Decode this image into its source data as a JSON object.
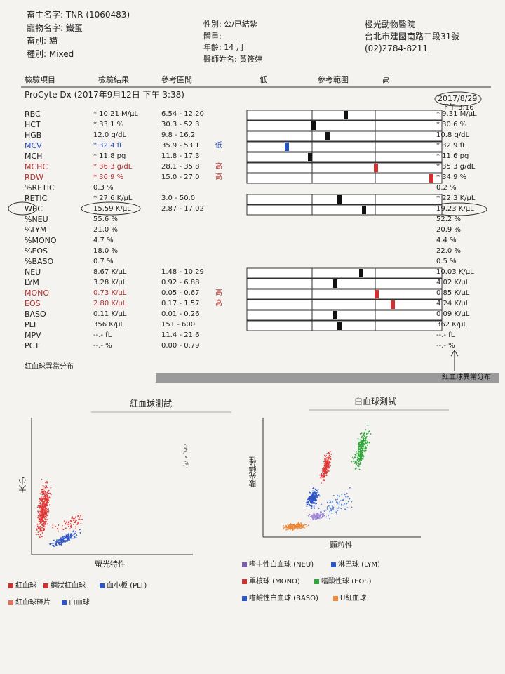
{
  "header": {
    "owner": "畜主名字: TNR (1060483)",
    "pet_name": "寵物名字: 鐵蛋",
    "species": "畜別: 貓",
    "breed": "種別: Mixed",
    "sex": "性別: 公/已結紮",
    "weight": "體重:",
    "age": "年齡: 14 月",
    "doctor": "醫師姓名: 黃筱婷",
    "clinic": "極光動物醫院",
    "address": "台北市建國南路二段31號",
    "phone": "(02)2784-8211"
  },
  "table": {
    "columns": [
      "檢驗項目",
      "檢驗結果",
      "參考區間",
      "低",
      "參考範圍",
      "高"
    ],
    "instrument": "ProCyte Dx (2017年9月12日 下午 3:38)",
    "previous_date": "2017/8/29",
    "previous_time": "下午 3:16",
    "rows": [
      {
        "name": "RBC",
        "result": "* 10.21 M/μL",
        "ref": "6.54 - 12.20",
        "prev": "* 9.31 M/μL"
      },
      {
        "name": "HCT",
        "result": "* 33.1 %",
        "ref": "30.3 - 52.3",
        "prev": "* 30.6 %"
      },
      {
        "name": "HGB",
        "result": "12.0 g/dL",
        "ref": "9.8 - 16.2",
        "prev": "10.8 g/dL"
      },
      {
        "name": "MCV",
        "result": "* 32.4 fL",
        "ref": "35.9 - 53.1",
        "flag": "低",
        "prev": "* 32.9 fL",
        "color": "#2a52be"
      },
      {
        "name": "MCH",
        "result": "* 11.8 pg",
        "ref": "11.8 - 17.3",
        "prev": "* 11.6 pg"
      },
      {
        "name": "MCHC",
        "result": "* 36.3 g/dL",
        "ref": "28.1 - 35.8",
        "flag": "高",
        "prev": "* 35.3 g/dL",
        "color": "#b03030"
      },
      {
        "name": "RDW",
        "result": "* 36.9 %",
        "ref": "15.0 - 27.0",
        "flag": "高",
        "prev": "* 34.9 %",
        "color": "#b03030"
      },
      {
        "name": "%RETIC",
        "result": "0.3 %",
        "prev": "0.2 %"
      },
      {
        "name": "RETIC",
        "result": "* 27.6 K/μL",
        "ref": "3.0 - 50.0",
        "prev": "* 22.3 K/μL"
      },
      {
        "name": "WBC",
        "result": "15.59 K/μL",
        "ref": "2.87 - 17.02",
        "prev": "19.23 K/μL"
      },
      {
        "name": "%NEU",
        "result": "55.6 %",
        "prev": "52.2 %"
      },
      {
        "name": "%LYM",
        "result": "21.0 %",
        "prev": "20.9 %"
      },
      {
        "name": "%MONO",
        "result": "4.7 %",
        "prev": "4.4 %"
      },
      {
        "name": "%EOS",
        "result": "18.0 %",
        "prev": "22.0 %"
      },
      {
        "name": "%BASO",
        "result": "0.7 %",
        "prev": "0.5 %"
      },
      {
        "name": "NEU",
        "result": "8.67 K/μL",
        "ref": "1.48 - 10.29",
        "prev": "10.03 K/μL"
      },
      {
        "name": "LYM",
        "result": "3.28 K/μL",
        "ref": "0.92 - 6.88",
        "prev": "4.02 K/μL"
      },
      {
        "name": "MONO",
        "result": "0.73 K/μL",
        "ref": "0.05 - 0.67",
        "flag": "高",
        "prev": "0.85 K/μL",
        "color": "#b03030"
      },
      {
        "name": "EOS",
        "result": "2.80 K/μL",
        "ref": "0.17 - 1.57",
        "flag": "高",
        "prev": "4.24 K/μL",
        "color": "#b03030"
      },
      {
        "name": "BASO",
        "result": "0.11 K/μL",
        "ref": "0.01 - 0.26",
        "prev": "0.09 K/μL"
      },
      {
        "name": "PLT",
        "result": "356 K/μL",
        "ref": "151 - 600",
        "prev": "362 K/μL"
      },
      {
        "name": "MPV",
        "result": "--.- fL",
        "ref": "11.4 - 21.6",
        "prev": "--.- fL"
      },
      {
        "name": "PCT",
        "result": "--.- %",
        "ref": "0.00 - 0.79",
        "prev": "--.- %"
      }
    ]
  },
  "rbc_distribution_left": "紅血球異常分布",
  "rbc_distribution_right": "紅血球異常分布",
  "rbc_plot": {
    "title": "紅血球測試",
    "y_label": "大小",
    "x_label": "螢光特性",
    "legend": [
      "紅血球",
      "網狀紅血球",
      "血小板 (PLT)",
      "紅血球碎片",
      "白血球"
    ]
  },
  "wbc_plot": {
    "title": "白血球測試",
    "y_label": "散光特性",
    "x_label": "顆粒性",
    "legend": [
      "嗜中性白血球 (NEU)",
      "淋巴球 (LYM)",
      "單核球 (MONO)",
      "嗜酸性球 (EOS)",
      "嗜鹼性白血球 (BASO)",
      "U紅血球"
    ]
  }
}
